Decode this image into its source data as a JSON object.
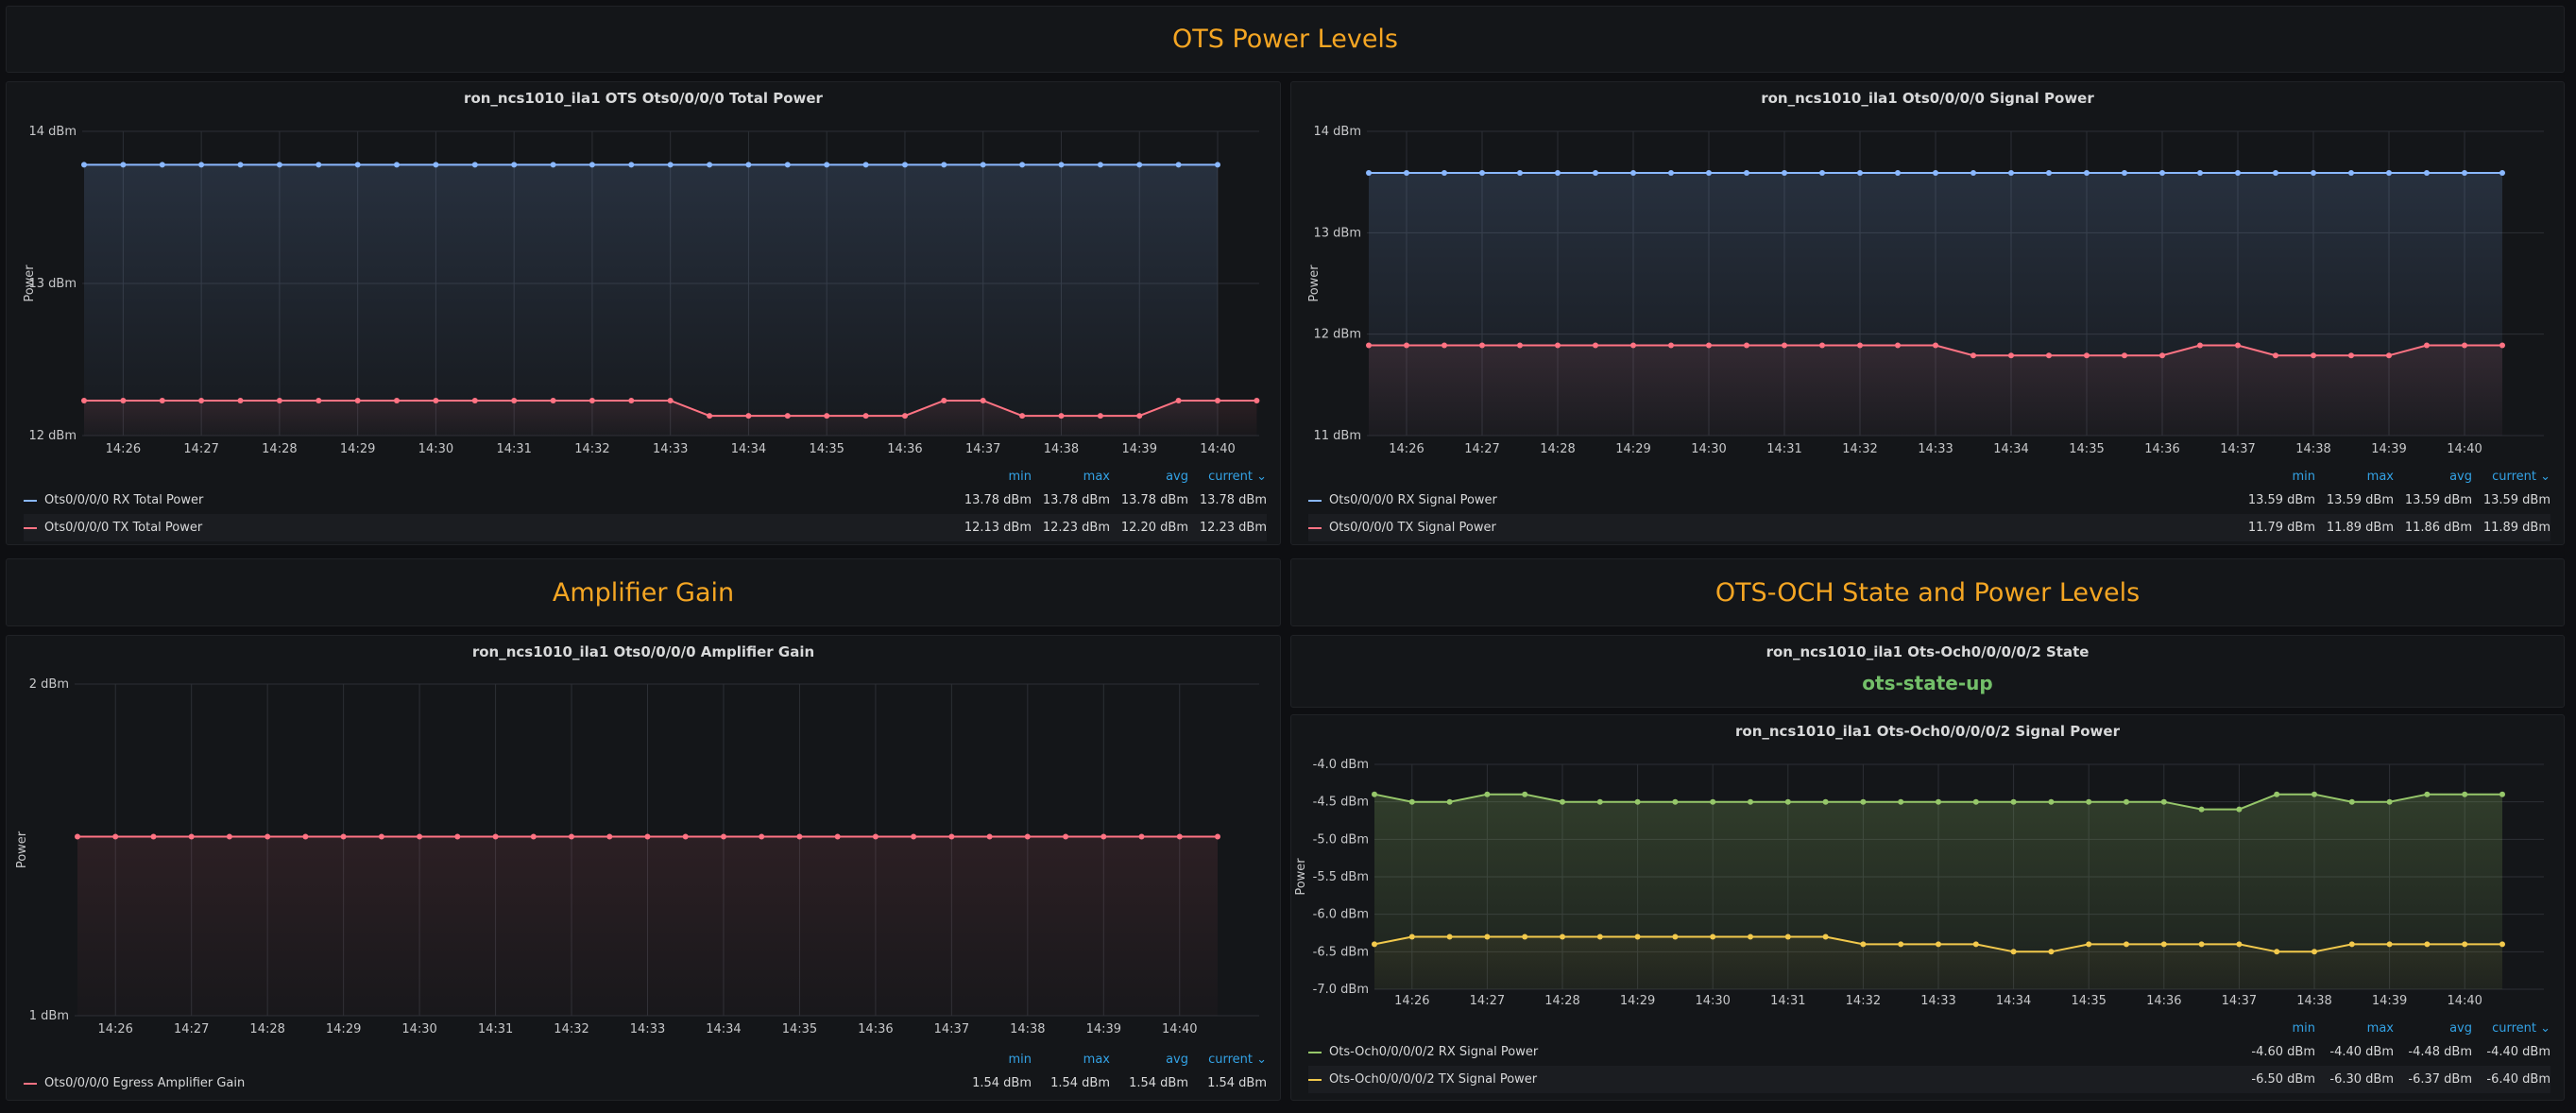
{
  "sections": {
    "ots_power_levels": "OTS Power Levels",
    "amplifier_gain": "Amplifier Gain",
    "ots_och_state": "OTS-OCH State and Power Levels"
  },
  "colors": {
    "banner": "#f5a623",
    "blue": "#8ab8ff",
    "red": "#ff7383",
    "green": "#96c76a",
    "yellow": "#f2c94c",
    "state": "#73bf69",
    "legend_header": "#33a2e5"
  },
  "legend_headers": [
    "min",
    "max",
    "avg",
    "current ⌄"
  ],
  "state_panel": {
    "title": "ron_ncs1010_ila1 Ots-Och0/0/0/0/2 State",
    "value": "ots-state-up"
  },
  "chart_data": [
    {
      "id": "total_power",
      "type": "line",
      "title": "ron_ncs1010_ila1 OTS Ots0/0/0/0 Total Power",
      "ylabel": "Power",
      "ylim": [
        12,
        14
      ],
      "yticks": [
        "12 dBm",
        "13 dBm",
        "14 dBm"
      ],
      "yticks_v": [
        12,
        13,
        14
      ],
      "xticks": [
        "14:26",
        "14:27",
        "14:28",
        "14:29",
        "14:30",
        "14:31",
        "14:32",
        "14:33",
        "14:34",
        "14:35",
        "14:36",
        "14:37",
        "14:38",
        "14:39",
        "14:40"
      ],
      "grid": true,
      "series": [
        {
          "name": "Ots0/0/0/0 RX Total Power",
          "color": "#8ab8ff",
          "values": [
            13.78,
            13.78,
            13.78,
            13.78,
            13.78,
            13.78,
            13.78,
            13.78,
            13.78,
            13.78,
            13.78,
            13.78,
            13.78,
            13.78,
            13.78,
            13.78,
            13.78,
            13.78,
            13.78,
            13.78,
            13.78,
            13.78,
            13.78,
            13.78,
            13.78,
            13.78,
            13.78,
            13.78,
            13.78,
            13.78
          ],
          "min": "13.78 dBm",
          "max": "13.78 dBm",
          "avg": "13.78 dBm",
          "current": "13.78 dBm"
        },
        {
          "name": "Ots0/0/0/0 TX Total Power",
          "color": "#ff7383",
          "values": [
            12.23,
            12.23,
            12.23,
            12.23,
            12.23,
            12.23,
            12.23,
            12.23,
            12.23,
            12.23,
            12.23,
            12.23,
            12.23,
            12.23,
            12.23,
            12.23,
            12.13,
            12.13,
            12.13,
            12.13,
            12.13,
            12.13,
            12.23,
            12.23,
            12.13,
            12.13,
            12.13,
            12.13,
            12.23,
            12.23,
            12.23
          ],
          "min": "12.13 dBm",
          "max": "12.23 dBm",
          "avg": "12.20 dBm",
          "current": "12.23 dBm"
        }
      ]
    },
    {
      "id": "signal_power",
      "type": "line",
      "title": "ron_ncs1010_ila1 Ots0/0/0/0 Signal Power",
      "ylabel": "Power",
      "ylim": [
        11,
        14
      ],
      "yticks": [
        "11 dBm",
        "12 dBm",
        "13 dBm",
        "14 dBm"
      ],
      "yticks_v": [
        11,
        12,
        13,
        14
      ],
      "xticks": [
        "14:26",
        "14:27",
        "14:28",
        "14:29",
        "14:30",
        "14:31",
        "14:32",
        "14:33",
        "14:34",
        "14:35",
        "14:36",
        "14:37",
        "14:38",
        "14:39",
        "14:40"
      ],
      "grid": true,
      "series": [
        {
          "name": "Ots0/0/0/0 RX Signal Power",
          "color": "#8ab8ff",
          "values": [
            13.59,
            13.59,
            13.59,
            13.59,
            13.59,
            13.59,
            13.59,
            13.59,
            13.59,
            13.59,
            13.59,
            13.59,
            13.59,
            13.59,
            13.59,
            13.59,
            13.59,
            13.59,
            13.59,
            13.59,
            13.59,
            13.59,
            13.59,
            13.59,
            13.59,
            13.59,
            13.59,
            13.59,
            13.59,
            13.59,
            13.59
          ],
          "min": "13.59 dBm",
          "max": "13.59 dBm",
          "avg": "13.59 dBm",
          "current": "13.59 dBm"
        },
        {
          "name": "Ots0/0/0/0 TX Signal Power",
          "color": "#ff7383",
          "values": [
            11.89,
            11.89,
            11.89,
            11.89,
            11.89,
            11.89,
            11.89,
            11.89,
            11.89,
            11.89,
            11.89,
            11.89,
            11.89,
            11.89,
            11.89,
            11.89,
            11.79,
            11.79,
            11.79,
            11.79,
            11.79,
            11.79,
            11.89,
            11.89,
            11.79,
            11.79,
            11.79,
            11.79,
            11.89,
            11.89,
            11.89
          ],
          "min": "11.79 dBm",
          "max": "11.89 dBm",
          "avg": "11.86 dBm",
          "current": "11.89 dBm"
        }
      ]
    },
    {
      "id": "amplifier_gain",
      "type": "line",
      "title": "ron_ncs1010_ila1 Ots0/0/0/0 Amplifier Gain",
      "ylabel": "Power",
      "ylim": [
        1,
        2
      ],
      "yticks": [
        "1 dBm",
        "2 dBm"
      ],
      "yticks_v": [
        1,
        2
      ],
      "xticks": [
        "14:26",
        "14:27",
        "14:28",
        "14:29",
        "14:30",
        "14:31",
        "14:32",
        "14:33",
        "14:34",
        "14:35",
        "14:36",
        "14:37",
        "14:38",
        "14:39",
        "14:40"
      ],
      "grid": true,
      "series": [
        {
          "name": "Ots0/0/0/0 Egress Amplifier Gain",
          "color": "#ff7383",
          "values": [
            1.54,
            1.54,
            1.54,
            1.54,
            1.54,
            1.54,
            1.54,
            1.54,
            1.54,
            1.54,
            1.54,
            1.54,
            1.54,
            1.54,
            1.54,
            1.54,
            1.54,
            1.54,
            1.54,
            1.54,
            1.54,
            1.54,
            1.54,
            1.54,
            1.54,
            1.54,
            1.54,
            1.54,
            1.54,
            1.54,
            1.54
          ],
          "min": "1.54 dBm",
          "max": "1.54 dBm",
          "avg": "1.54 dBm",
          "current": "1.54 dBm"
        }
      ]
    },
    {
      "id": "och_signal_power",
      "type": "line",
      "title": "ron_ncs1010_ila1 Ots-Och0/0/0/0/2 Signal Power",
      "ylabel": "Power",
      "ylim": [
        -7,
        -4
      ],
      "yticks": [
        "-7.0 dBm",
        "-6.5 dBm",
        "-6.0 dBm",
        "-5.5 dBm",
        "-5.0 dBm",
        "-4.5 dBm",
        "-4.0 dBm"
      ],
      "yticks_v": [
        -7,
        -6.5,
        -6,
        -5.5,
        -5,
        -4.5,
        -4
      ],
      "xticks": [
        "14:26",
        "14:27",
        "14:28",
        "14:29",
        "14:30",
        "14:31",
        "14:32",
        "14:33",
        "14:34",
        "14:35",
        "14:36",
        "14:37",
        "14:38",
        "14:39",
        "14:40"
      ],
      "grid": true,
      "series": [
        {
          "name": "Ots-Och0/0/0/0/2 RX Signal Power",
          "color": "#96c76a",
          "values": [
            -4.4,
            -4.5,
            -4.5,
            -4.4,
            -4.4,
            -4.5,
            -4.5,
            -4.5,
            -4.5,
            -4.5,
            -4.5,
            -4.5,
            -4.5,
            -4.5,
            -4.5,
            -4.5,
            -4.5,
            -4.5,
            -4.5,
            -4.5,
            -4.5,
            -4.5,
            -4.6,
            -4.6,
            -4.4,
            -4.4,
            -4.5,
            -4.5,
            -4.4,
            -4.4,
            -4.4
          ],
          "min": "-4.60 dBm",
          "max": "-4.40 dBm",
          "avg": "-4.48 dBm",
          "current": "-4.40 dBm"
        },
        {
          "name": "Ots-Och0/0/0/0/2 TX Signal Power",
          "color": "#f2c94c",
          "values": [
            -6.4,
            -6.3,
            -6.3,
            -6.3,
            -6.3,
            -6.3,
            -6.3,
            -6.3,
            -6.3,
            -6.3,
            -6.3,
            -6.3,
            -6.3,
            -6.4,
            -6.4,
            -6.4,
            -6.4,
            -6.5,
            -6.5,
            -6.4,
            -6.4,
            -6.4,
            -6.4,
            -6.4,
            -6.5,
            -6.5,
            -6.4,
            -6.4,
            -6.4,
            -6.4,
            -6.4
          ],
          "min": "-6.50 dBm",
          "max": "-6.30 dBm",
          "avg": "-6.37 dBm",
          "current": "-6.40 dBm"
        }
      ]
    }
  ]
}
